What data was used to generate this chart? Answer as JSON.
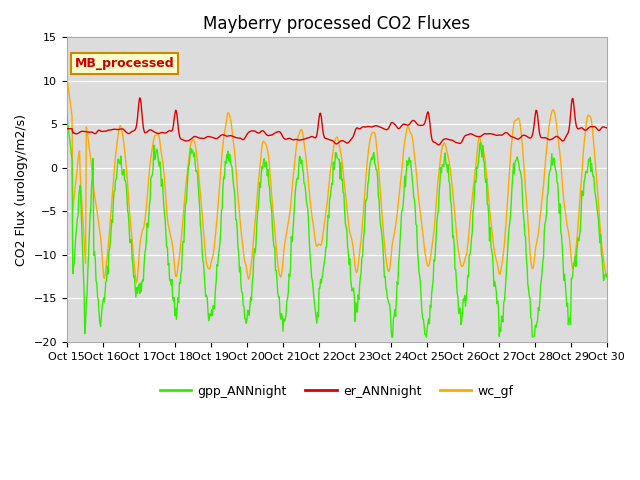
{
  "title": "Mayberry processed CO2 Fluxes",
  "ylabel": "CO2 Flux (urology/m2/s)",
  "xlabel": "",
  "ylim": [
    -20,
    15
  ],
  "yticks": [
    -20,
    -15,
    -10,
    -5,
    0,
    5,
    10,
    15
  ],
  "xtick_labels": [
    "Oct 15",
    "Oct 16",
    "Oct 17",
    "Oct 18",
    "Oct 19",
    "Oct 20",
    "Oct 21",
    "Oct 22",
    "Oct 23",
    "Oct 24",
    "Oct 25",
    "Oct 26",
    "Oct 27",
    "Oct 28",
    "Oct 29",
    "Oct 30"
  ],
  "colors": {
    "gpp": "#33ee00",
    "er": "#dd0000",
    "wc": "#ffaa00"
  },
  "legend_label": "MB_processed",
  "legend_facecolor": "#ffffcc",
  "legend_edgecolor": "#cc8800",
  "legend_textcolor": "#cc0000",
  "bg_color": "#dcdcdc",
  "linewidth": 1.0,
  "title_fontsize": 12,
  "axis_fontsize": 9,
  "tick_fontsize": 8,
  "legend_fontsize": 9
}
